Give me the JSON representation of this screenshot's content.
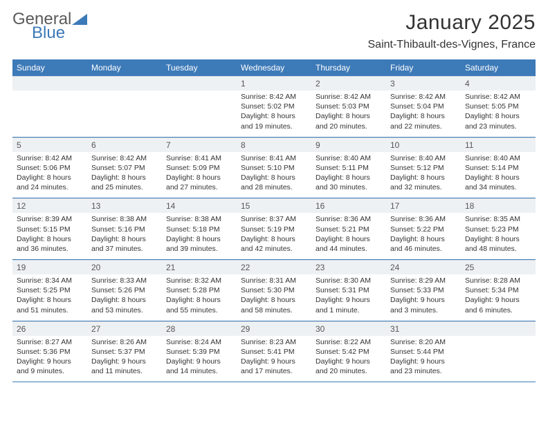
{
  "brand": {
    "word1": "General",
    "word2": "Blue"
  },
  "title": "January 2025",
  "location": "Saint-Thibault-des-Vignes, France",
  "colors": {
    "header_bar": "#3d7ab8",
    "daynum_bg": "#eef1f3",
    "text": "#333333",
    "separator": "#3d7ab8"
  },
  "typography": {
    "title_fontsize": 30,
    "location_fontsize": 16,
    "dow_fontsize": 12,
    "cell_fontsize": 10.5
  },
  "day_names": [
    "Sunday",
    "Monday",
    "Tuesday",
    "Wednesday",
    "Thursday",
    "Friday",
    "Saturday"
  ],
  "first_weekday_index": 3,
  "days_in_month": 31,
  "days": {
    "1": {
      "sunrise": "8:42 AM",
      "sunset": "5:02 PM",
      "daylight": "8 hours and 19 minutes."
    },
    "2": {
      "sunrise": "8:42 AM",
      "sunset": "5:03 PM",
      "daylight": "8 hours and 20 minutes."
    },
    "3": {
      "sunrise": "8:42 AM",
      "sunset": "5:04 PM",
      "daylight": "8 hours and 22 minutes."
    },
    "4": {
      "sunrise": "8:42 AM",
      "sunset": "5:05 PM",
      "daylight": "8 hours and 23 minutes."
    },
    "5": {
      "sunrise": "8:42 AM",
      "sunset": "5:06 PM",
      "daylight": "8 hours and 24 minutes."
    },
    "6": {
      "sunrise": "8:42 AM",
      "sunset": "5:07 PM",
      "daylight": "8 hours and 25 minutes."
    },
    "7": {
      "sunrise": "8:41 AM",
      "sunset": "5:09 PM",
      "daylight": "8 hours and 27 minutes."
    },
    "8": {
      "sunrise": "8:41 AM",
      "sunset": "5:10 PM",
      "daylight": "8 hours and 28 minutes."
    },
    "9": {
      "sunrise": "8:40 AM",
      "sunset": "5:11 PM",
      "daylight": "8 hours and 30 minutes."
    },
    "10": {
      "sunrise": "8:40 AM",
      "sunset": "5:12 PM",
      "daylight": "8 hours and 32 minutes."
    },
    "11": {
      "sunrise": "8:40 AM",
      "sunset": "5:14 PM",
      "daylight": "8 hours and 34 minutes."
    },
    "12": {
      "sunrise": "8:39 AM",
      "sunset": "5:15 PM",
      "daylight": "8 hours and 36 minutes."
    },
    "13": {
      "sunrise": "8:38 AM",
      "sunset": "5:16 PM",
      "daylight": "8 hours and 37 minutes."
    },
    "14": {
      "sunrise": "8:38 AM",
      "sunset": "5:18 PM",
      "daylight": "8 hours and 39 minutes."
    },
    "15": {
      "sunrise": "8:37 AM",
      "sunset": "5:19 PM",
      "daylight": "8 hours and 42 minutes."
    },
    "16": {
      "sunrise": "8:36 AM",
      "sunset": "5:21 PM",
      "daylight": "8 hours and 44 minutes."
    },
    "17": {
      "sunrise": "8:36 AM",
      "sunset": "5:22 PM",
      "daylight": "8 hours and 46 minutes."
    },
    "18": {
      "sunrise": "8:35 AM",
      "sunset": "5:23 PM",
      "daylight": "8 hours and 48 minutes."
    },
    "19": {
      "sunrise": "8:34 AM",
      "sunset": "5:25 PM",
      "daylight": "8 hours and 51 minutes."
    },
    "20": {
      "sunrise": "8:33 AM",
      "sunset": "5:26 PM",
      "daylight": "8 hours and 53 minutes."
    },
    "21": {
      "sunrise": "8:32 AM",
      "sunset": "5:28 PM",
      "daylight": "8 hours and 55 minutes."
    },
    "22": {
      "sunrise": "8:31 AM",
      "sunset": "5:30 PM",
      "daylight": "8 hours and 58 minutes."
    },
    "23": {
      "sunrise": "8:30 AM",
      "sunset": "5:31 PM",
      "daylight": "9 hours and 1 minute."
    },
    "24": {
      "sunrise": "8:29 AM",
      "sunset": "5:33 PM",
      "daylight": "9 hours and 3 minutes."
    },
    "25": {
      "sunrise": "8:28 AM",
      "sunset": "5:34 PM",
      "daylight": "9 hours and 6 minutes."
    },
    "26": {
      "sunrise": "8:27 AM",
      "sunset": "5:36 PM",
      "daylight": "9 hours and 9 minutes."
    },
    "27": {
      "sunrise": "8:26 AM",
      "sunset": "5:37 PM",
      "daylight": "9 hours and 11 minutes."
    },
    "28": {
      "sunrise": "8:24 AM",
      "sunset": "5:39 PM",
      "daylight": "9 hours and 14 minutes."
    },
    "29": {
      "sunrise": "8:23 AM",
      "sunset": "5:41 PM",
      "daylight": "9 hours and 17 minutes."
    },
    "30": {
      "sunrise": "8:22 AM",
      "sunset": "5:42 PM",
      "daylight": "9 hours and 20 minutes."
    },
    "31": {
      "sunrise": "8:20 AM",
      "sunset": "5:44 PM",
      "daylight": "9 hours and 23 minutes."
    }
  },
  "labels": {
    "sunrise": "Sunrise:",
    "sunset": "Sunset:",
    "daylight": "Daylight:"
  }
}
